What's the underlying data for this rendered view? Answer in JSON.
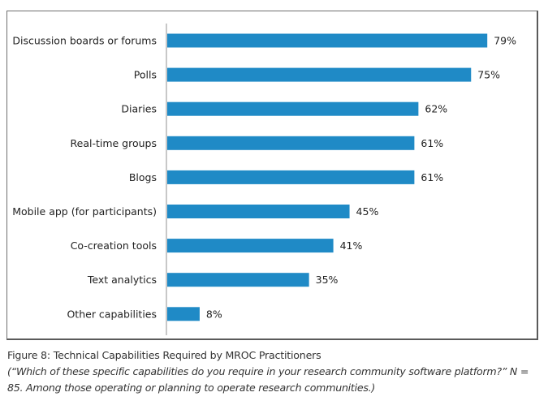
{
  "chart_data": {
    "type": "bar",
    "orientation": "horizontal",
    "categories": [
      "Discussion boards or forums",
      "Polls",
      "Diaries",
      "Real-time groups",
      "Blogs",
      "Mobile app (for participants)",
      "Co-creation tools",
      "Text analytics",
      "Other capabilities"
    ],
    "values": [
      79,
      75,
      62,
      61,
      61,
      45,
      41,
      35,
      8
    ],
    "value_labels": [
      "79%",
      "75%",
      "62%",
      "61%",
      "61%",
      "45%",
      "41%",
      "35%",
      "8%"
    ],
    "unit": "%",
    "title": "Figure 8: Technical Capabilities Required by MROC Practitioners",
    "xlabel": "",
    "ylabel": "",
    "xlim": [
      0,
      90
    ],
    "grid": false,
    "legend": "none",
    "bar_color": "#1f8ac6",
    "axis_color": "#c8c8c8"
  },
  "caption": {
    "title": "Figure 8: Technical Capabilities Required by MROC Practitioners",
    "note": "(“Which of these specific capabilities do you require in your research community software platform?” N = 85. Among those operating or planning to operate research communities.)"
  }
}
